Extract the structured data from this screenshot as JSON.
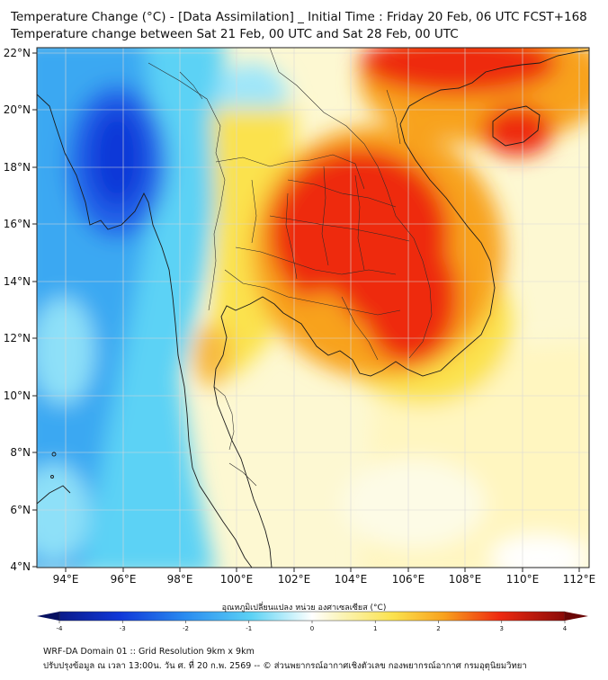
{
  "header": {
    "title_line1": "Temperature Change (°C) - [Data Assimilation] _ Initial Time : Friday 20 Feb, 06 UTC FCST+168",
    "title_line2": "Temperature change between Sat 21 Feb, 00 UTC and Sat 28 Feb, 00 UTC"
  },
  "map": {
    "lat_labels": [
      "22°N",
      "20°N",
      "18°N",
      "16°N",
      "14°N",
      "12°N",
      "10°N",
      "8°N",
      "6°N",
      "4°N"
    ],
    "lon_labels": [
      "94°E",
      "96°E",
      "98°E",
      "100°E",
      "102°E",
      "104°E",
      "106°E",
      "108°E",
      "110°E",
      "112°E"
    ],
    "colors": {
      "deep_blue": "#1038d8",
      "blue": "#2a8cf0",
      "cyan": "#5cd2f5",
      "light_cyan": "#b8eefa",
      "pale_yellow": "#fbf4b6",
      "yellow": "#fbe24e",
      "orange": "#f8a21e",
      "red": "#ee2a10",
      "coast": "#1a1a1a"
    }
  },
  "colorbar": {
    "label": "อุณหภูมิเปลี่ยนแปลง หน่วย องศาเซลเซียส (°C)",
    "ticks": [
      "-4",
      "-3",
      "-2",
      "-1",
      "0",
      "1",
      "2",
      "3",
      "4"
    ],
    "min": -4,
    "max": 4
  },
  "footer": {
    "line1": "WRF-DA Domain 01 :: Grid Resolution 9km x 9km",
    "line2": "ปรับปรุงข้อมูล ณ เวลา 13:00น. วัน ศ. ที่ 20 ก.พ. 2569 -- © ส่วนพยากรณ์อากาศเชิงตัวเลข กองพยากรณ์อากาศ กรมอุตุนิยมวิทยา"
  }
}
